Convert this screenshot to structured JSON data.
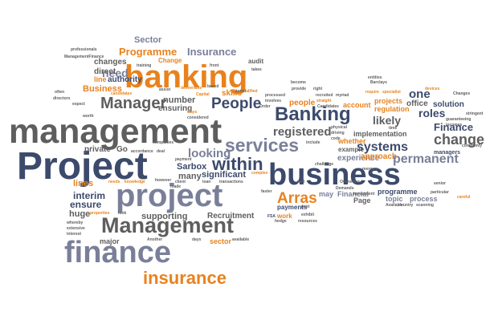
{
  "words": {
    "management": "management",
    "project_cap": "Project",
    "project": "project",
    "business": "business",
    "banking": "banking",
    "banking_cap": "Banking",
    "finance": "finance",
    "finance_cap": "Finance",
    "management_cap": "Management",
    "manager": "Manager",
    "insurance": "insurance",
    "insurance_cap": "Insurance",
    "services": "services",
    "within": "within",
    "people_cap": "People",
    "people": "people",
    "programme_cap": "Programme",
    "programme": "programme",
    "change": "change",
    "change_cap": "Change",
    "registered": "registered",
    "arras": "Arras",
    "systems": "systems",
    "permanent": "permanent",
    "experience": "experience",
    "looking": "looking",
    "lines": "lines",
    "interim": "interim",
    "ensure": "ensure",
    "huge": "huge",
    "recruitment": "Recruitment",
    "supporting": "supporting",
    "sector_cap": "Sector",
    "sector": "sector",
    "major": "major",
    "one": "one",
    "office": "office",
    "roles": "roles",
    "likely": "likely",
    "solution": "solution",
    "account": "account",
    "projects": "projects",
    "regulation": "regulation",
    "implementation": "implementation",
    "approach": "approach",
    "whether": "whether",
    "example": "example",
    "managers": "managers",
    "process": "process",
    "topic": "topic",
    "page": "Page",
    "financial": "Financial",
    "may": "may",
    "payments": "payments",
    "work": "work",
    "significant": "significant",
    "many": "many",
    "sarbox": "Sarbox",
    "private": "private",
    "go": "Go",
    "need": "need",
    "direct": "direct",
    "line": "line",
    "authority": "authority",
    "business_cap": "Business",
    "changes": "changes",
    "number": "number",
    "ensuring": "ensuring",
    "audit": "audit",
    "skills": "skills",
    "professionals": "professionals",
    "managementfinance": "ManagementFinance",
    "candidates": "candidates",
    "another": "Another",
    "days": "days",
    "avoid": "avoid",
    "available": "available",
    "capital": "Capital",
    "assist": "assist",
    "based": "based",
    "needs": "needs",
    "knowledge": "knowledge",
    "often": "often",
    "directors": "directors",
    "careful": "careful",
    "particular": "particular",
    "training": "training",
    "front": "front",
    "takes": "takes",
    "become": "become",
    "provide": "provide",
    "right": "right",
    "barclays": "Barclays",
    "devices": "devices",
    "require": "require",
    "specialist": "specialist",
    "stringent": "stringent",
    "commonly": "commonly",
    "mergers": "mergers",
    "overviews": "Overviews",
    "companies": "companies",
    "accordance": "accordance",
    "deal": "deal",
    "however": "however",
    "made": "made",
    "client": "client",
    "loan": "loan",
    "transactions": "transactions",
    "complex": "complex",
    "faster": "faster",
    "fsa": "FSA",
    "demands": "Demands",
    "candidate": "Candidates",
    "extensive": "extensive",
    "whereby": "whereby",
    "interest": "interest",
    "properties": "properties",
    "look": "look",
    "ways": "ways",
    "considered": "considered",
    "resources": "resources",
    "exhibit": "exhibit",
    "country": "country",
    "scanning": "scanning",
    "entities": "entities",
    "guaranteeing": "guaranteeing",
    "incomes": "incomes",
    "physical": "physical",
    "driving": "driving",
    "code": "code",
    "include": "include",
    "deliverable": "deliverable",
    "qualified": "qualified",
    "involves": "involves",
    "processed": "processed",
    "order": "Order",
    "time": "time",
    "straight": "straight",
    "changes2": "Changes",
    "recruited": "recruited",
    "myriad": "myriad",
    "challenge": "challenge",
    "expect": "expect",
    "available2": "Available",
    "worth": "worth",
    "well": "well",
    "senior": "senior",
    "payment": "payment",
    "hedge": "hedge",
    "past": "past",
    "investment": "investment"
  }
}
